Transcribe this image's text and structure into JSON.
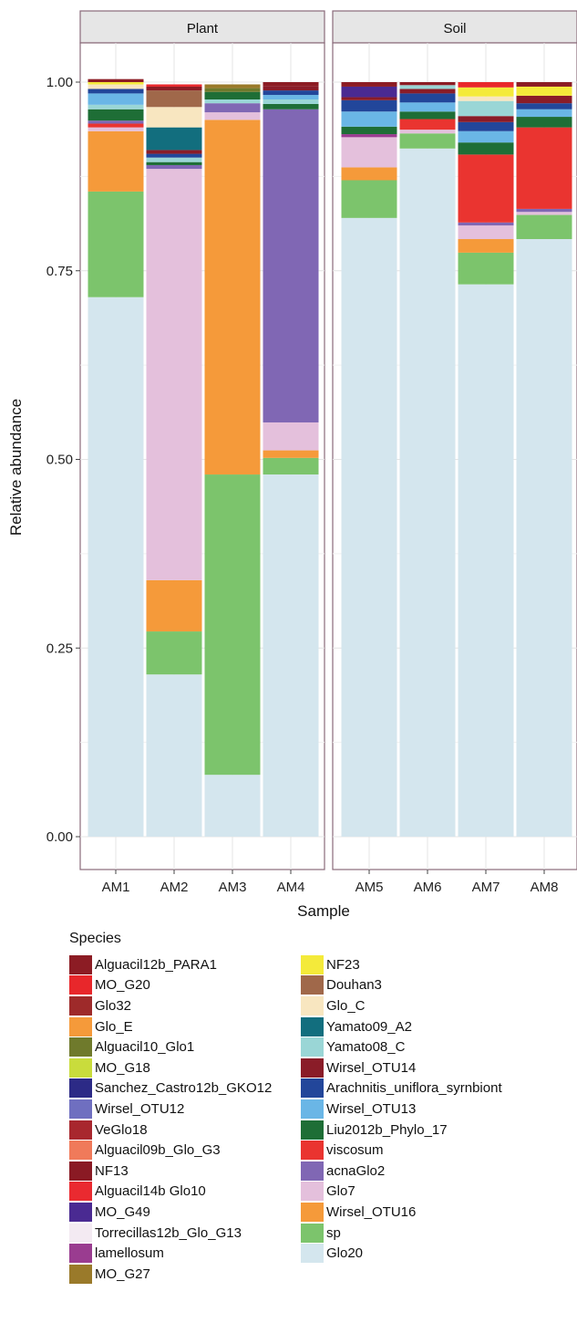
{
  "chart_data": {
    "type": "bar",
    "stacked": true,
    "ylabel": "Relative abundance",
    "xlabel": "Sample",
    "ylim": [
      0,
      1
    ],
    "yticks": [
      "0.00",
      "0.25",
      "0.50",
      "0.75",
      "1.00"
    ],
    "grid": true,
    "legend_title": "Species",
    "legend_position": "bottom",
    "panels": [
      {
        "title": "Plant",
        "samples": [
          "AM1",
          "AM2",
          "AM3",
          "AM4"
        ]
      },
      {
        "title": "Soil",
        "samples": [
          "AM5",
          "AM6",
          "AM7",
          "AM8"
        ]
      }
    ],
    "species": [
      {
        "name": "Alguacil12b_PARA1",
        "color": "#8c1c24"
      },
      {
        "name": "MO_G20",
        "color": "#e8272b"
      },
      {
        "name": "Glo32",
        "color": "#9e2a2a"
      },
      {
        "name": "Glo_E",
        "color": "#f59a3a"
      },
      {
        "name": "Alguacil10_Glo1",
        "color": "#6f7a2c"
      },
      {
        "name": "MO_G18",
        "color": "#c9dc3c"
      },
      {
        "name": "Sanchez_Castro12b_GKO12",
        "color": "#2c2a86"
      },
      {
        "name": "Wirsel_OTU12",
        "color": "#6f6fc0"
      },
      {
        "name": "VeGlo18",
        "color": "#a8272e"
      },
      {
        "name": "Alguacil09b_Glo_G3",
        "color": "#f07a5a"
      },
      {
        "name": "NF13",
        "color": "#8a1a24"
      },
      {
        "name": "Alguacil14b Glo10",
        "color": "#ea2a30"
      },
      {
        "name": "MO_G49",
        "color": "#4a2a92"
      },
      {
        "name": "Torrecillas12b_Glo_G13",
        "color": "#f3eaf2"
      },
      {
        "name": "lamellosum",
        "color": "#9a3c90"
      },
      {
        "name": "MO_G27",
        "color": "#9a7a2a"
      },
      {
        "name": "NF23",
        "color": "#f4ea3a"
      },
      {
        "name": "Douhan3",
        "color": "#a0684a"
      },
      {
        "name": "Glo_C",
        "color": "#f8e6c0"
      },
      {
        "name": "Yamato09_A2",
        "color": "#126e7e"
      },
      {
        "name": "Yamato08_C",
        "color": "#9ad6d6"
      },
      {
        "name": "Wirsel_OTU14",
        "color": "#8a1c28"
      },
      {
        "name": "Arachnitis_uniflora_syrnbiont",
        "color": "#22469a"
      },
      {
        "name": "Wirsel_OTU13",
        "color": "#6ab6e6"
      },
      {
        "name": "Liu2012b_Phylo_17",
        "color": "#1e6e36"
      },
      {
        "name": "viscosum",
        "color": "#ea3430"
      },
      {
        "name": "acnaGlo2",
        "color": "#8067b4"
      },
      {
        "name": "Glo7",
        "color": "#e4c0dc"
      },
      {
        "name": "Wirsel_OTU16",
        "color": "#f59a3a"
      },
      {
        "name": "sp",
        "color": "#7cc46c"
      },
      {
        "name": "Glo20",
        "color": "#d4e6ee"
      }
    ],
    "bars": [
      {
        "sample": "AM1",
        "panel": "Plant",
        "segments": [
          [
            "Glo20",
            0.715
          ],
          [
            "sp",
            0.14
          ],
          [
            "Glo_E",
            0.08
          ],
          [
            "Glo7",
            0.005
          ],
          [
            "viscosum",
            0.005
          ],
          [
            "acnaGlo2",
            0.004
          ],
          [
            "Liu2012b_Phylo_17",
            0.015
          ],
          [
            "Yamato08_C",
            0.006
          ],
          [
            "Wirsel_OTU13",
            0.015
          ],
          [
            "Arachnitis_uniflora_syrnbiont",
            0.006
          ],
          [
            "Glo_C",
            0.006
          ],
          [
            "NF23",
            0.003
          ],
          [
            "Alguacil12b_PARA1",
            0.004
          ]
        ]
      },
      {
        "sample": "AM2",
        "panel": "Plant",
        "segments": [
          [
            "Glo20",
            0.215
          ],
          [
            "sp",
            0.057
          ],
          [
            "Glo_E",
            0.068
          ],
          [
            "Glo7",
            0.545
          ],
          [
            "acnaGlo2",
            0.005
          ],
          [
            "Liu2012b_Phylo_17",
            0.004
          ],
          [
            "Yamato08_C",
            0.006
          ],
          [
            "Arachnitis_uniflora_syrnbiont",
            0.005
          ],
          [
            "Wirsel_OTU14",
            0.005
          ],
          [
            "Yamato09_A2",
            0.03
          ],
          [
            "Glo_C",
            0.027
          ],
          [
            "Douhan3",
            0.022
          ],
          [
            "Alguacil12b_PARA1",
            0.005
          ],
          [
            "MO_G20",
            0.003
          ]
        ]
      },
      {
        "sample": "AM3",
        "panel": "Plant",
        "segments": [
          [
            "Glo20",
            0.082
          ],
          [
            "sp",
            0.398
          ],
          [
            "Wirsel_OTU16",
            0.47
          ],
          [
            "Glo7",
            0.01
          ],
          [
            "acnaGlo2",
            0.012
          ],
          [
            "Yamato08_C",
            0.005
          ],
          [
            "Liu2012b_Phylo_17",
            0.01
          ],
          [
            "Alguacil10_Glo1",
            0.005
          ],
          [
            "MO_G27",
            0.005
          ]
        ]
      },
      {
        "sample": "AM4",
        "panel": "Plant",
        "segments": [
          [
            "Glo20",
            0.48
          ],
          [
            "sp",
            0.022
          ],
          [
            "Wirsel_OTU16",
            0.01
          ],
          [
            "Glo7",
            0.037
          ],
          [
            "acnaGlo2",
            0.415
          ],
          [
            "Liu2012b_Phylo_17",
            0.007
          ],
          [
            "Yamato08_C",
            0.006
          ],
          [
            "Wirsel_OTU13",
            0.006
          ],
          [
            "Arachnitis_uniflora_syrnbiont",
            0.006
          ],
          [
            "Wirsel_OTU14",
            0.006
          ],
          [
            "Alguacil12b_PARA1",
            0.005
          ]
        ]
      },
      {
        "sample": "AM5",
        "panel": "Soil",
        "segments": [
          [
            "Glo20",
            0.82
          ],
          [
            "sp",
            0.05
          ],
          [
            "Wirsel_OTU16",
            0.017
          ],
          [
            "Glo7",
            0.04
          ],
          [
            "lamellosum",
            0.004
          ],
          [
            "Liu2012b_Phylo_17",
            0.01
          ],
          [
            "Wirsel_OTU13",
            0.02
          ],
          [
            "Arachnitis_uniflora_syrnbiont",
            0.015
          ],
          [
            "Wirsel_OTU14",
            0.004
          ],
          [
            "MO_G49",
            0.014
          ],
          [
            "Alguacil12b_PARA1",
            0.006
          ]
        ]
      },
      {
        "sample": "AM6",
        "panel": "Soil",
        "segments": [
          [
            "Glo20",
            0.912
          ],
          [
            "sp",
            0.02
          ],
          [
            "Glo7",
            0.005
          ],
          [
            "viscosum",
            0.014
          ],
          [
            "Liu2012b_Phylo_17",
            0.01
          ],
          [
            "Wirsel_OTU13",
            0.012
          ],
          [
            "Arachnitis_uniflora_syrnbiont",
            0.012
          ],
          [
            "Wirsel_OTU14",
            0.006
          ],
          [
            "Yamato08_C",
            0.005
          ],
          [
            "Alguacil12b_PARA1",
            0.004
          ]
        ]
      },
      {
        "sample": "AM7",
        "panel": "Soil",
        "segments": [
          [
            "Glo20",
            0.732
          ],
          [
            "sp",
            0.042
          ],
          [
            "Wirsel_OTU16",
            0.018
          ],
          [
            "Glo7",
            0.018
          ],
          [
            "acnaGlo2",
            0.004
          ],
          [
            "viscosum",
            0.09
          ],
          [
            "Liu2012b_Phylo_17",
            0.016
          ],
          [
            "Wirsel_OTU13",
            0.015
          ],
          [
            "Arachnitis_uniflora_syrnbiont",
            0.012
          ],
          [
            "Wirsel_OTU14",
            0.008
          ],
          [
            "Yamato08_C",
            0.02
          ],
          [
            "Glo_C",
            0.006
          ],
          [
            "NF23",
            0.012
          ],
          [
            "MO_G20",
            0.007
          ]
        ]
      },
      {
        "sample": "AM8",
        "panel": "Soil",
        "segments": [
          [
            "Glo20",
            0.792
          ],
          [
            "sp",
            0.032
          ],
          [
            "Glo7",
            0.004
          ],
          [
            "acnaGlo2",
            0.004
          ],
          [
            "viscosum",
            0.108
          ],
          [
            "Liu2012b_Phylo_17",
            0.014
          ],
          [
            "Wirsel_OTU13",
            0.01
          ],
          [
            "Arachnitis_uniflora_syrnbiont",
            0.008
          ],
          [
            "Wirsel_OTU14",
            0.01
          ],
          [
            "NF23",
            0.012
          ],
          [
            "Alguacil12b_PARA1",
            0.006
          ]
        ]
      }
    ]
  }
}
